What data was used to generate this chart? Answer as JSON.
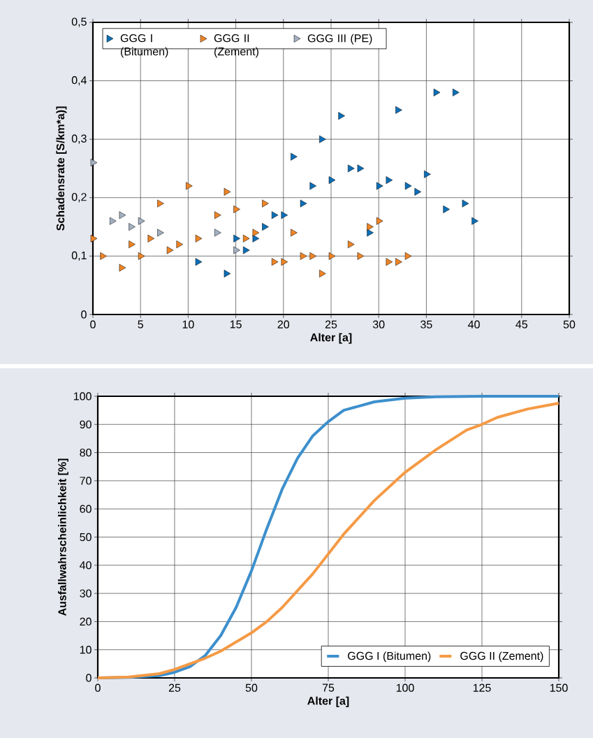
{
  "chart_data": [
    {
      "type": "scatter",
      "xlabel": "Alter [a]",
      "ylabel": "Schadensrate [S/km*a)]",
      "xlim": [
        0,
        50
      ],
      "ylim": [
        0,
        0.5
      ],
      "xticks": [
        0,
        5,
        10,
        15,
        20,
        25,
        30,
        35,
        40,
        45,
        50
      ],
      "yticks": [
        0,
        {
          "value": 0.1,
          "label": "0,1"
        },
        {
          "value": 0.2,
          "label": "0,2"
        },
        {
          "value": 0.3,
          "label": "0,3"
        },
        {
          "value": 0.4,
          "label": "0,4"
        },
        {
          "value": 0.5,
          "label": "0,5"
        }
      ],
      "grid": true,
      "legend": "top left",
      "marker": "triangle",
      "series": [
        {
          "name": "GGG I (Bitumen)",
          "color": "#0b6fb8",
          "x": [
            11,
            14,
            15,
            16,
            17,
            18,
            19,
            20,
            21,
            22,
            23,
            24,
            25,
            26,
            27,
            28,
            29,
            30,
            31,
            32,
            33,
            34,
            35,
            36,
            37,
            38,
            39,
            40
          ],
          "values": [
            0.09,
            0.07,
            0.13,
            0.11,
            0.13,
            0.15,
            0.17,
            0.17,
            0.27,
            0.19,
            0.22,
            0.3,
            0.23,
            0.34,
            0.25,
            0.25,
            0.14,
            0.22,
            0.23,
            0.35,
            0.22,
            0.21,
            0.24,
            0.38,
            0.18,
            0.38,
            0.19,
            0.16
          ]
        },
        {
          "name": "GGG II (Zement)",
          "color": "#f08424",
          "x": [
            0,
            1,
            3,
            4,
            5,
            6,
            7,
            8,
            9,
            10,
            11,
            13,
            14,
            15,
            16,
            17,
            18,
            19,
            20,
            21,
            22,
            23,
            24,
            25,
            27,
            28,
            29,
            30,
            31,
            32,
            33
          ],
          "values": [
            0.13,
            0.1,
            0.08,
            0.12,
            0.1,
            0.13,
            0.19,
            0.11,
            0.12,
            0.22,
            0.13,
            0.17,
            0.21,
            0.18,
            0.13,
            0.14,
            0.19,
            0.09,
            0.09,
            0.14,
            0.1,
            0.1,
            0.07,
            0.1,
            0.12,
            0.1,
            0.15,
            0.16,
            0.09,
            0.09,
            0.1
          ]
        },
        {
          "name": "GGG III (PE)",
          "color": "#a3b1c2",
          "x": [
            0,
            2,
            3,
            4,
            5,
            7,
            13,
            15
          ],
          "values": [
            0.26,
            0.16,
            0.17,
            0.15,
            0.16,
            0.14,
            0.14,
            0.11
          ]
        }
      ]
    },
    {
      "type": "line",
      "xlabel": "Alter [a]",
      "ylabel": "Ausfallwahrscheinlichkeit [%]",
      "xlim": [
        0,
        150
      ],
      "ylim": [
        0,
        100
      ],
      "xticks": [
        0,
        25,
        50,
        75,
        100,
        125,
        150
      ],
      "yticks": [
        0,
        10,
        20,
        30,
        40,
        50,
        60,
        70,
        80,
        90,
        100
      ],
      "grid": true,
      "legend": "bottom right",
      "series": [
        {
          "name": "GGG I  (Bitumen)",
          "color": "#3d8fcc",
          "x": [
            0,
            10,
            20,
            25,
            30,
            35,
            40,
            45,
            50,
            55,
            60,
            65,
            70,
            75,
            80,
            90,
            100,
            110,
            125,
            150
          ],
          "values": [
            0,
            0.2,
            0.8,
            2,
            4,
            8,
            15,
            25,
            38,
            53,
            67,
            78,
            86,
            91,
            95,
            98,
            99.3,
            99.8,
            100,
            100
          ]
        },
        {
          "name": "GGG II  (Zement)",
          "color": "#f59a45",
          "x": [
            0,
            10,
            20,
            25,
            30,
            35,
            40,
            50,
            55,
            60,
            65,
            70,
            75,
            80,
            85,
            90,
            100,
            110,
            120,
            125,
            130,
            140,
            150
          ],
          "values": [
            0,
            0.3,
            1.5,
            3,
            5,
            7,
            9.5,
            16,
            20,
            25,
            31,
            37,
            44,
            51,
            57,
            63,
            73,
            81,
            88,
            90,
            92.5,
            95.5,
            97.5
          ]
        }
      ]
    }
  ]
}
